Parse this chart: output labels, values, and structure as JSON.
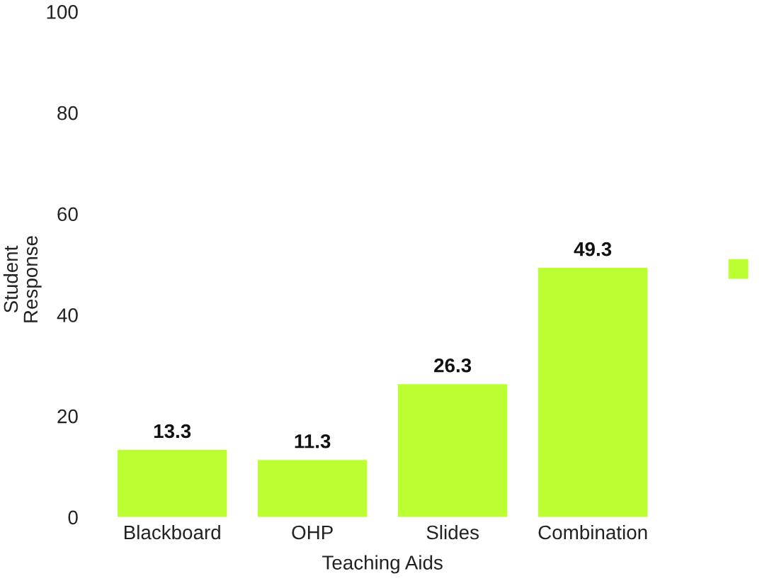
{
  "chart_data": {
    "type": "bar",
    "xlabel": "Teaching Aids",
    "ylabel": "Student\nResponse",
    "categories": [
      "Blackboard",
      "OHP",
      "Slides",
      "Combination"
    ],
    "series": [
      {
        "color": "#bbff33",
        "values": [
          13.3,
          11.3,
          26.3,
          49.3
        ]
      }
    ],
    "ylim": [
      0,
      100
    ],
    "yticks": [
      0,
      20,
      40,
      60,
      80,
      100
    ],
    "data_labels": true,
    "grid": false
  }
}
